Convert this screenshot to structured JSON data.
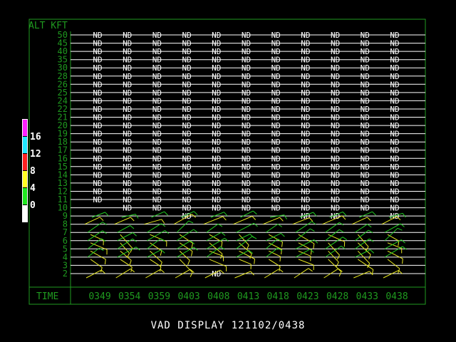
{
  "display": {
    "alt_label": "ALT KFT",
    "time_label": "TIME",
    "footer_title": "VAD DISPLAY 121102/0438"
  },
  "colors": {
    "frame": "#1f9a1f",
    "axis_text": "#1f9a1f",
    "grid": "#ffffff",
    "nd_text": "#ffffff",
    "barb_green": "#22cc22",
    "barb_yellow": "#e8e820"
  },
  "altitudes": [
    "50",
    "45",
    "40",
    "35",
    "30",
    "28",
    "26",
    "25",
    "24",
    "22",
    "21",
    "20",
    "19",
    "18",
    "17",
    "16",
    "15",
    "14",
    "13",
    "12",
    "11",
    "10",
    "9",
    "8",
    "7",
    "6",
    "5",
    "4",
    "3",
    "2"
  ],
  "times": [
    "0349",
    "0354",
    "0359",
    "0403",
    "0408",
    "0413",
    "0418",
    "0423",
    "0428",
    "0433",
    "0438"
  ],
  "no_data_label": "ND",
  "no_data_rows_full": 21,
  "no_data_cells_10kft": [
    1,
    2,
    3,
    4,
    5,
    6,
    7,
    8,
    9,
    10
  ],
  "no_data_cells_9kft": [
    3,
    7,
    8,
    10
  ],
  "no_data_cells_2kft": [
    4
  ],
  "color_scale": {
    "segments": [
      {
        "color": "#ff20ff"
      },
      {
        "color": "#20e8ff"
      },
      {
        "color": "#ff2020"
      },
      {
        "color": "#ffff20"
      },
      {
        "color": "#20e820"
      },
      {
        "color": "#ffffff"
      }
    ],
    "labels": [
      "16",
      "12",
      "8",
      "4",
      "0"
    ]
  }
}
